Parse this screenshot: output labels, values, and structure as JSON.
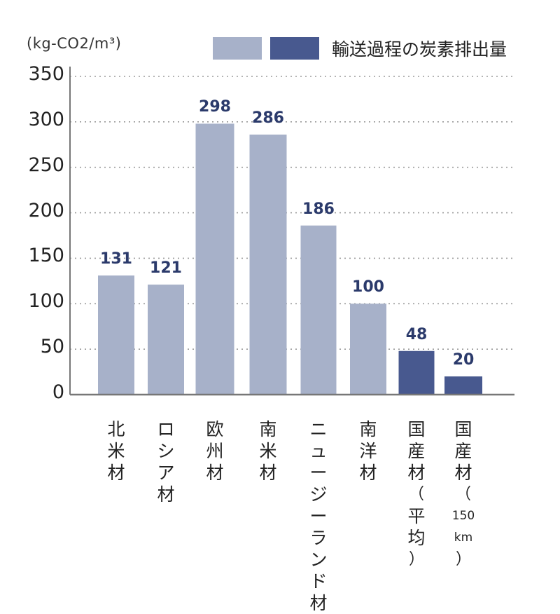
{
  "chart_data": {
    "type": "bar",
    "unit_label": "(kg-CO2/m³)",
    "legend": {
      "label": "輸送過程の炭素排出量",
      "colors": [
        "#a7b1c9",
        "#48598f"
      ]
    },
    "ylim": [
      0,
      350
    ],
    "yticks": [
      "350",
      "300",
      "250",
      "200",
      "150",
      "100",
      "50",
      "0"
    ],
    "grid": "dotted",
    "categories": [
      "北米材",
      "ロシア材",
      "欧州材",
      "南米材",
      "ニュージーランド材",
      "南洋材",
      "国産材（平均）",
      "国産材（150km）"
    ],
    "category_lines": [
      [
        "北",
        "米",
        "材"
      ],
      [
        "ロ",
        "シ",
        "ア",
        "材"
      ],
      [
        "欧",
        "州",
        "材"
      ],
      [
        "南",
        "米",
        "材"
      ],
      [
        "ニ",
        "ュ",
        "ー",
        "ジ",
        "ー",
        "ラ",
        "ン",
        "ド",
        "材"
      ],
      [
        "南",
        "洋",
        "材"
      ],
      [
        "国",
        "産",
        "材",
        "（",
        "平",
        "均",
        "）"
      ],
      [
        "国",
        "産",
        "材",
        "（",
        "150",
        "km",
        "）"
      ]
    ],
    "values": [
      131,
      121,
      298,
      286,
      186,
      100,
      48,
      20
    ],
    "value_labels": [
      "131",
      "121",
      "298",
      "286",
      "186",
      "100",
      "48",
      "20"
    ],
    "bar_colors": [
      "#a7b1c9",
      "#a7b1c9",
      "#a7b1c9",
      "#a7b1c9",
      "#a7b1c9",
      "#a7b1c9",
      "#48598f",
      "#48598f"
    ]
  }
}
